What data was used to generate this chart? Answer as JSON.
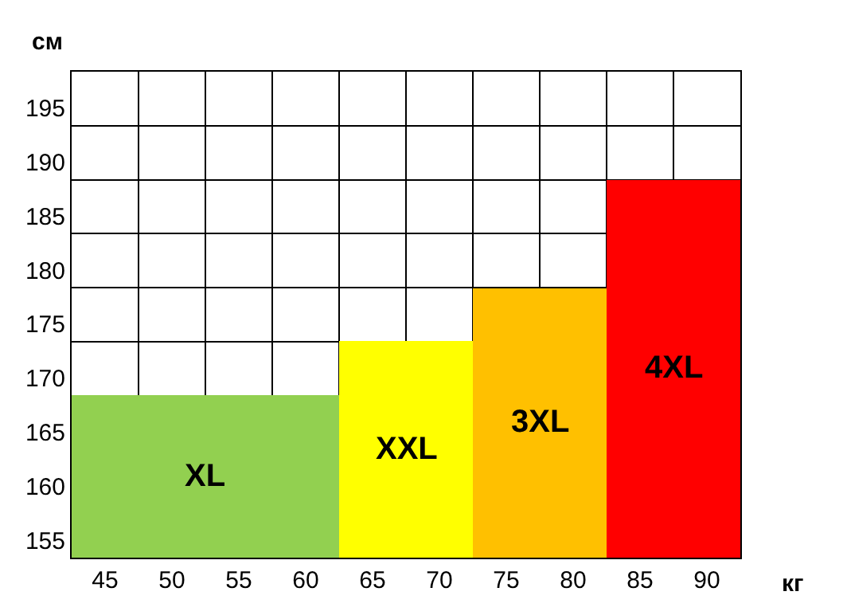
{
  "chart_data": {
    "type": "bar",
    "xlabel": "кг",
    "ylabel": "см",
    "x": [
      45,
      50,
      55,
      60,
      65,
      70,
      75,
      80,
      85,
      90
    ],
    "values": [
      170,
      170,
      170,
      170,
      175,
      175,
      180,
      180,
      190,
      190
    ],
    "colors": [
      "#92d050",
      "#92d050",
      "#92d050",
      "#92d050",
      "#ffff00",
      "#ffff00",
      "#ffc000",
      "#ffc000",
      "#ff0000",
      "#ff0000"
    ],
    "xlim": [
      42.5,
      92.5
    ],
    "xticks": [
      45,
      50,
      55,
      60,
      65,
      70,
      75,
      80,
      85,
      90
    ],
    "ylim": [
      155,
      200
    ],
    "yticks": [
      155,
      160,
      165,
      170,
      175,
      180,
      185,
      190,
      195
    ],
    "grid": true,
    "legend": false,
    "annotations": [
      "XL",
      "XXL",
      "3XL",
      "4XL"
    ]
  }
}
